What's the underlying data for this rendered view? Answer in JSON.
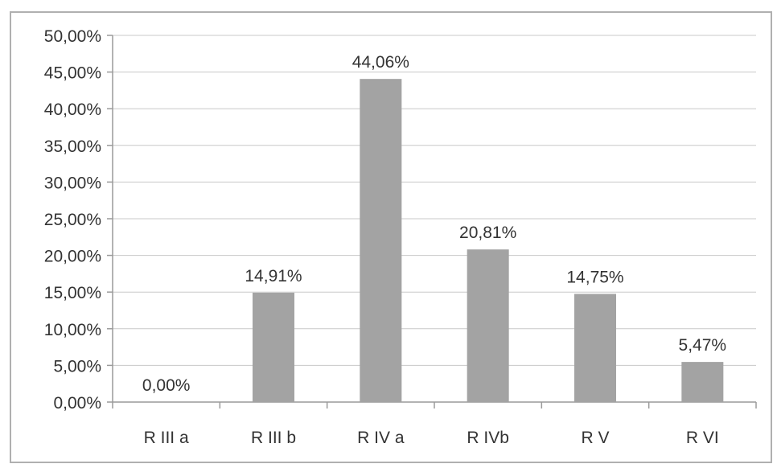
{
  "chart_data": {
    "type": "bar",
    "categories": [
      "R III a",
      "R III b",
      "R IV a",
      "R IVb",
      "R V",
      "R VI"
    ],
    "values": [
      0.0,
      14.91,
      44.06,
      20.81,
      14.75,
      5.47
    ],
    "data_labels": [
      "0,00%",
      "14,91%",
      "44,06%",
      "20,81%",
      "14,75%",
      "5,47%"
    ],
    "y_tick_labels": [
      "0,00%",
      "5,00%",
      "10,00%",
      "15,00%",
      "20,00%",
      "25,00%",
      "30,00%",
      "35,00%",
      "40,00%",
      "45,00%",
      "50,00%"
    ],
    "ylim": [
      0,
      50
    ],
    "grid": true,
    "legend": "none",
    "title": "",
    "xlabel": "",
    "ylabel": "",
    "colors": {
      "bar": "#a3a3a3",
      "grid": "#c8c8c8",
      "axis": "#9a9a9a",
      "border": "#b0b0b0",
      "text": "#333333"
    }
  }
}
